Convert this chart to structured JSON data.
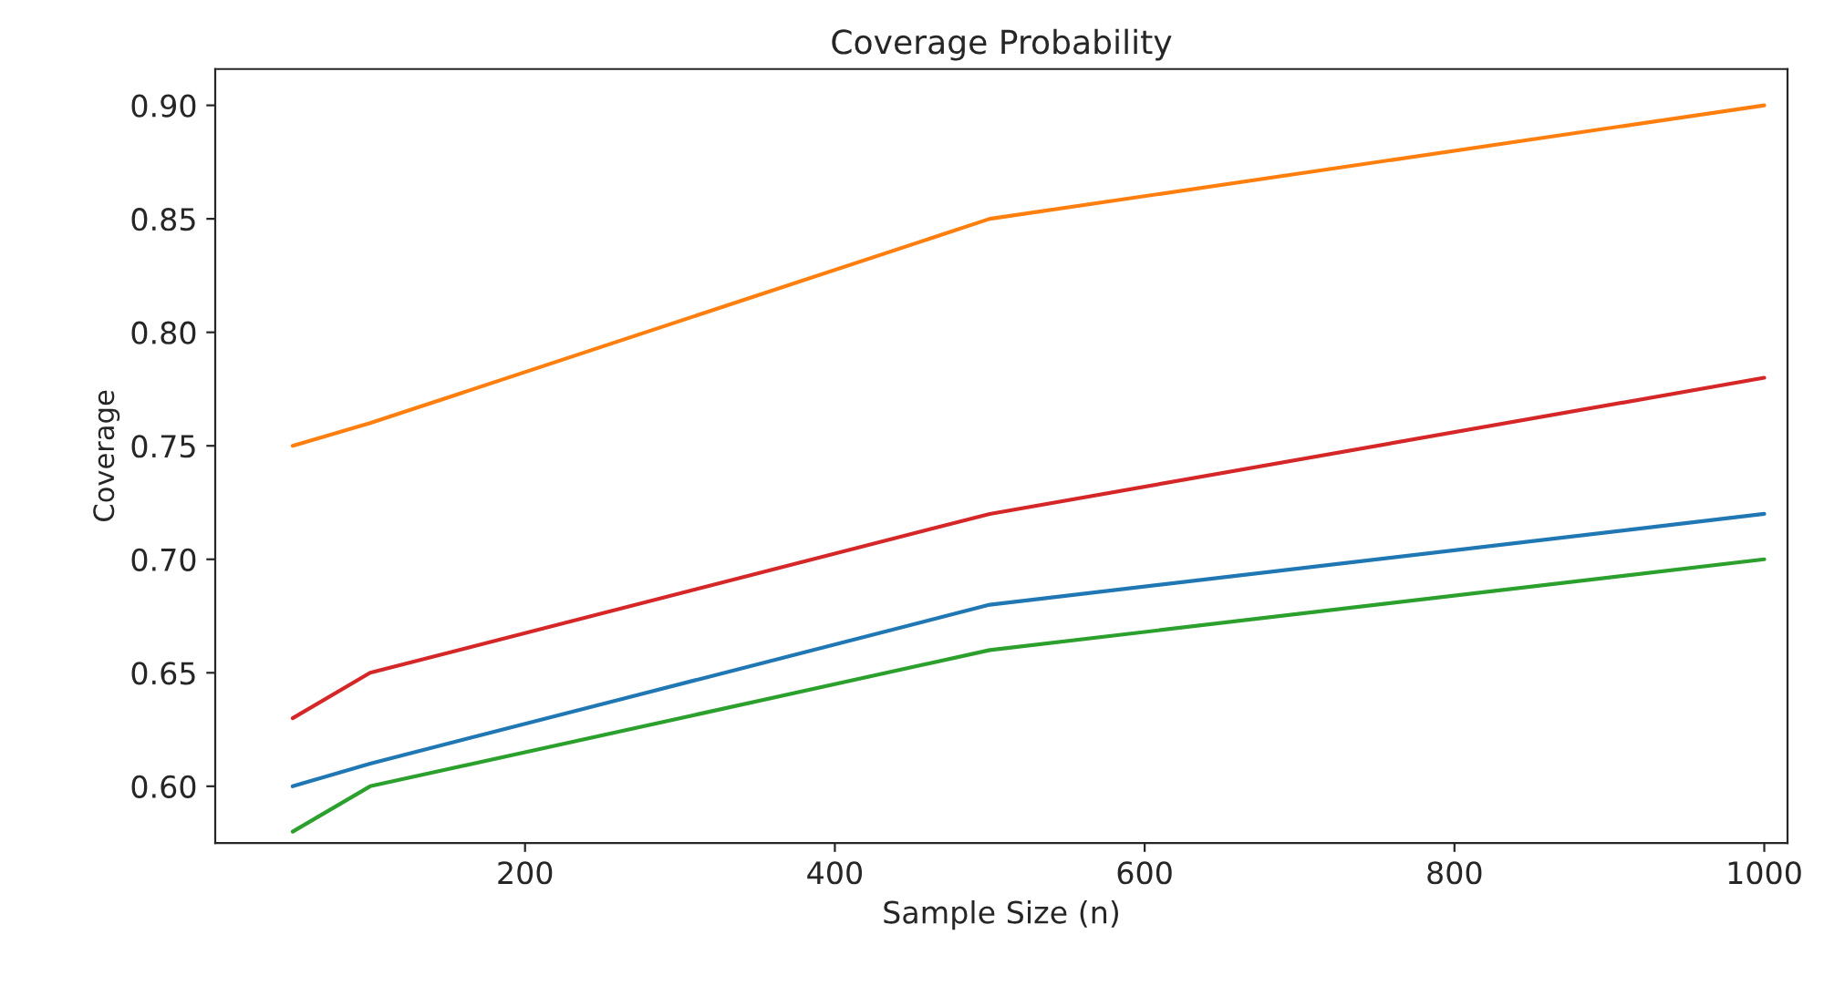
{
  "chart_data": {
    "type": "line",
    "title": "Coverage Probability",
    "xlabel": "Sample Size (n)",
    "ylabel": "Coverage",
    "x": [
      50,
      100,
      500,
      1000
    ],
    "series": [
      {
        "color": "#1f77b4",
        "values": [
          0.6,
          0.61,
          0.68,
          0.72
        ]
      },
      {
        "color": "#ff7f0e",
        "values": [
          0.75,
          0.76,
          0.85,
          0.9
        ]
      },
      {
        "color": "#2ca02c",
        "values": [
          0.58,
          0.6,
          0.66,
          0.7
        ]
      },
      {
        "color": "#d62728",
        "values": [
          0.63,
          0.65,
          0.72,
          0.78
        ]
      }
    ],
    "xlim": [
      0,
      1015
    ],
    "xticks": [
      200,
      400,
      600,
      800,
      1000
    ],
    "ylim": [
      0.575,
      0.916
    ],
    "yticks": [
      {
        "value": 0.6,
        "label": "0.60"
      },
      {
        "value": 0.65,
        "label": "0.65"
      },
      {
        "value": 0.7,
        "label": "0.70"
      },
      {
        "value": 0.75,
        "label": "0.75"
      },
      {
        "value": 0.8,
        "label": "0.80"
      },
      {
        "value": 0.85,
        "label": "0.85"
      },
      {
        "value": 0.9,
        "label": "0.90"
      }
    ],
    "grid": false
  }
}
